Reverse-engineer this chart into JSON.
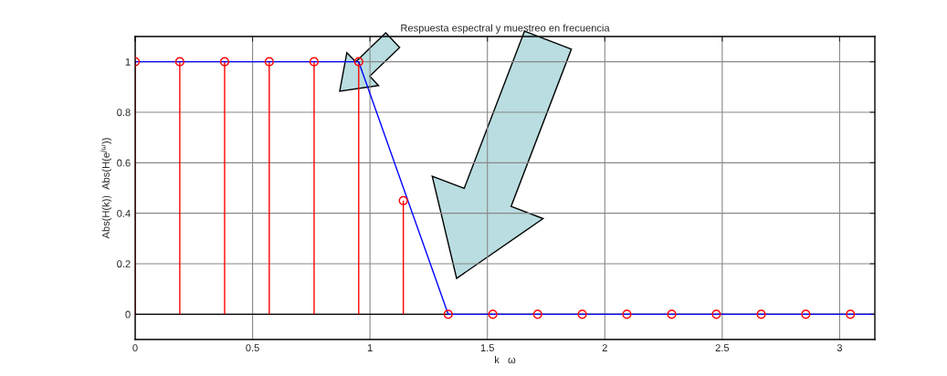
{
  "chart_data": {
    "type": "lollipop",
    "title": "Respuesta espectral y muestreo en frecuencia",
    "xlabel": "k   ω",
    "ylabel": "Abs(H(k))  Abs(H(e$^{jω}$))",
    "x": [
      0,
      0.19,
      0.381,
      0.571,
      0.762,
      0.952,
      1.142,
      1.333,
      1.523,
      1.714,
      1.904,
      2.094,
      2.285,
      2.475,
      2.666,
      2.856,
      3.046
    ],
    "series": [
      {
        "color": "#ff0000",
        "marker": "circle",
        "values": [
          1,
          1,
          1,
          1,
          1,
          1,
          0.45,
          0,
          0,
          0,
          0,
          0,
          0,
          0,
          0,
          0,
          0
        ]
      },
      {
        "type": "line",
        "color": "#0000ff",
        "x": [
          0,
          0.952,
          1.333,
          3.14
        ],
        "values": [
          1,
          1,
          0,
          0
        ]
      }
    ],
    "xlim": [
      0,
      3.15
    ],
    "ylim": [
      -0.1,
      1.1
    ],
    "xticks": [
      0,
      0.5,
      1,
      1.5,
      2,
      2.5,
      3
    ],
    "yticks": [
      0,
      0.2,
      0.4,
      0.6,
      0.8,
      1
    ],
    "grid": true
  }
}
